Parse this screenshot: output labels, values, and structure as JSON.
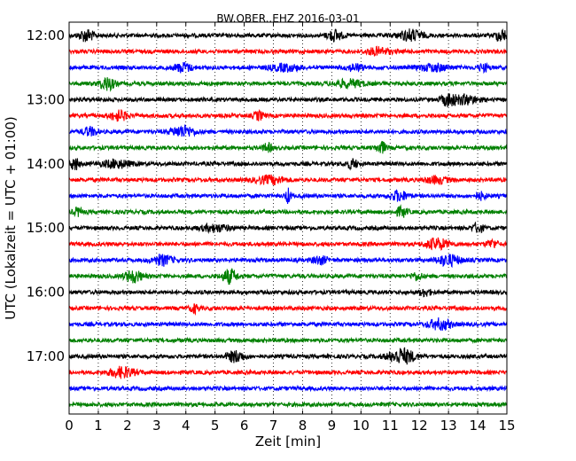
{
  "chart_data": {
    "type": "line",
    "title": "BW.OBER..EHZ 2016-03-01",
    "xlabel": "Zeit  [min]",
    "ylabel": "UTC (Lokalzeit = UTC + 01:00)",
    "xlim": [
      0,
      15
    ],
    "x_ticks": [
      "0",
      "1",
      "2",
      "3",
      "4",
      "5",
      "6",
      "7",
      "8",
      "9",
      "10",
      "11",
      "12",
      "13",
      "14",
      "15"
    ],
    "y_ticks": [
      "12:00",
      "13:00",
      "14:00",
      "15:00",
      "16:00",
      "17:00"
    ],
    "grid": "vertical dotted",
    "series_colors": [
      "#000000",
      "#ff0000",
      "#0000ff",
      "#008000"
    ],
    "traces": [
      {
        "start": "12:00",
        "color": "#000000",
        "bursts": [
          [
            0.6,
            2.2,
            0.5
          ],
          [
            9.1,
            2.0,
            0.5
          ],
          [
            11.7,
            2.0,
            0.8
          ],
          [
            14.8,
            2.2,
            0.4
          ]
        ]
      },
      {
        "start": "12:15",
        "color": "#ff0000",
        "bursts": [
          [
            10.6,
            1.3,
            0.8
          ]
        ]
      },
      {
        "start": "12:30",
        "color": "#0000ff",
        "bursts": [
          [
            3.9,
            1.6,
            0.6
          ],
          [
            7.4,
            1.2,
            1.0
          ],
          [
            9.8,
            1.2,
            0.6
          ],
          [
            12.5,
            1.3,
            1.0
          ],
          [
            14.2,
            1.3,
            0.4
          ]
        ]
      },
      {
        "start": "12:45",
        "color": "#008000",
        "bursts": [
          [
            1.3,
            2.4,
            0.5
          ],
          [
            9.6,
            1.3,
            1.0
          ]
        ]
      },
      {
        "start": "13:00",
        "color": "#000000",
        "bursts": [
          [
            13.0,
            2.2,
            0.5
          ],
          [
            13.6,
            1.6,
            0.8
          ]
        ]
      },
      {
        "start": "13:15",
        "color": "#ff0000",
        "bursts": [
          [
            1.7,
            1.8,
            0.6
          ],
          [
            6.5,
            1.6,
            0.3
          ]
        ]
      },
      {
        "start": "13:30",
        "color": "#0000ff",
        "bursts": [
          [
            0.7,
            1.5,
            0.5
          ],
          [
            3.9,
            2.0,
            0.8
          ]
        ]
      },
      {
        "start": "13:45",
        "color": "#008000",
        "bursts": [
          [
            6.8,
            1.5,
            0.3
          ],
          [
            10.7,
            2.2,
            0.3
          ]
        ]
      },
      {
        "start": "14:00",
        "color": "#000000",
        "bursts": [
          [
            0.2,
            2.4,
            0.3
          ],
          [
            1.6,
            1.4,
            1.0
          ],
          [
            9.7,
            1.6,
            0.4
          ]
        ]
      },
      {
        "start": "14:15",
        "color": "#ff0000",
        "bursts": [
          [
            6.9,
            1.4,
            1.0
          ],
          [
            12.6,
            1.2,
            0.8
          ]
        ]
      },
      {
        "start": "14:30",
        "color": "#0000ff",
        "bursts": [
          [
            7.5,
            2.6,
            0.2
          ],
          [
            11.3,
            1.8,
            0.6
          ],
          [
            14.1,
            1.2,
            0.4
          ]
        ]
      },
      {
        "start": "14:45",
        "color": "#008000",
        "bursts": [
          [
            0.3,
            1.4,
            0.3
          ],
          [
            11.4,
            1.7,
            0.4
          ]
        ]
      },
      {
        "start": "15:00",
        "color": "#000000",
        "bursts": [
          [
            5.0,
            1.2,
            1.0
          ],
          [
            14.0,
            1.5,
            0.4
          ]
        ]
      },
      {
        "start": "15:15",
        "color": "#ff0000",
        "bursts": [
          [
            12.6,
            2.0,
            0.8
          ],
          [
            14.5,
            1.4,
            0.4
          ]
        ]
      },
      {
        "start": "15:30",
        "color": "#0000ff",
        "bursts": [
          [
            3.2,
            1.8,
            0.7
          ],
          [
            8.6,
            1.4,
            0.5
          ],
          [
            13.0,
            2.0,
            0.8
          ]
        ]
      },
      {
        "start": "15:45",
        "color": "#008000",
        "bursts": [
          [
            2.2,
            2.2,
            0.6
          ],
          [
            5.5,
            2.6,
            0.5
          ],
          [
            11.9,
            1.3,
            0.4
          ]
        ]
      },
      {
        "start": "16:00",
        "color": "#000000",
        "bursts": [
          [
            12.2,
            1.3,
            0.4
          ]
        ]
      },
      {
        "start": "16:15",
        "color": "#ff0000",
        "bursts": [
          [
            4.3,
            1.5,
            0.3
          ]
        ]
      },
      {
        "start": "16:30",
        "color": "#0000ff",
        "bursts": [
          [
            12.7,
            1.9,
            0.8
          ]
        ]
      },
      {
        "start": "16:45",
        "color": "#008000",
        "bursts": []
      },
      {
        "start": "17:00",
        "color": "#000000",
        "bursts": [
          [
            5.7,
            2.0,
            0.6
          ],
          [
            11.4,
            2.8,
            0.9
          ]
        ]
      },
      {
        "start": "17:15",
        "color": "#ff0000",
        "bursts": [
          [
            1.8,
            1.8,
            0.9
          ]
        ]
      },
      {
        "start": "17:30",
        "color": "#0000ff",
        "bursts": []
      },
      {
        "start": "17:45",
        "color": "#008000",
        "bursts": []
      }
    ]
  }
}
